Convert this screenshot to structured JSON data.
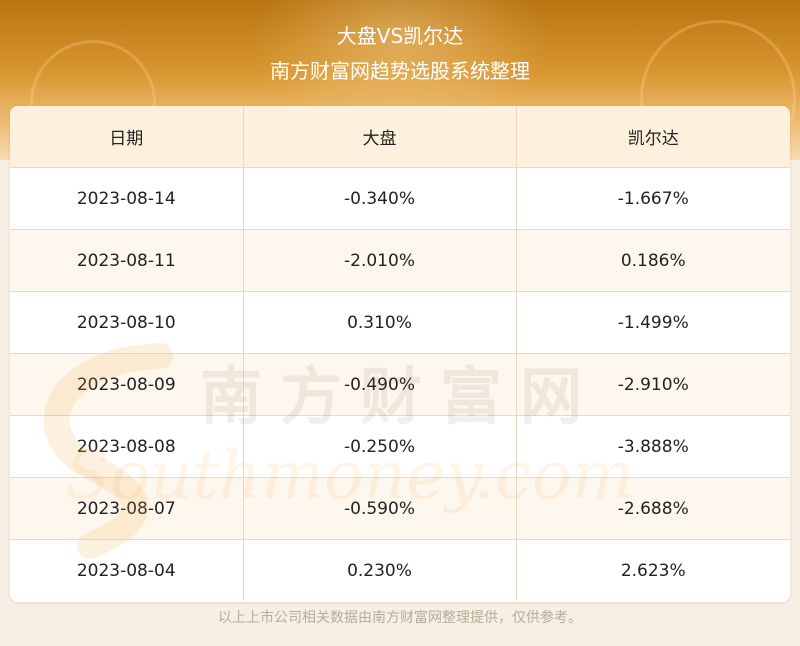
{
  "header": {
    "title": "大盘VS凯尔达",
    "subtitle": "南方财富网趋势选股系统整理"
  },
  "table": {
    "columns": [
      "日期",
      "大盘",
      "凯尔达"
    ],
    "rows": [
      [
        "2023-08-14",
        "-0.340%",
        "-1.667%"
      ],
      [
        "2023-08-11",
        "-2.010%",
        "0.186%"
      ],
      [
        "2023-08-10",
        "0.310%",
        "-1.499%"
      ],
      [
        "2023-08-09",
        "-0.490%",
        "-2.910%"
      ],
      [
        "2023-08-08",
        "-0.250%",
        "-3.888%"
      ],
      [
        "2023-08-07",
        "-0.590%",
        "-2.688%"
      ],
      [
        "2023-08-04",
        "0.230%",
        "2.623%"
      ]
    ]
  },
  "watermark": {
    "cn": "南方财富网",
    "en": "Southmoney.com"
  },
  "footer": {
    "note": "以上上市公司相关数据由南方财富网整理提供，仅供参考。"
  }
}
